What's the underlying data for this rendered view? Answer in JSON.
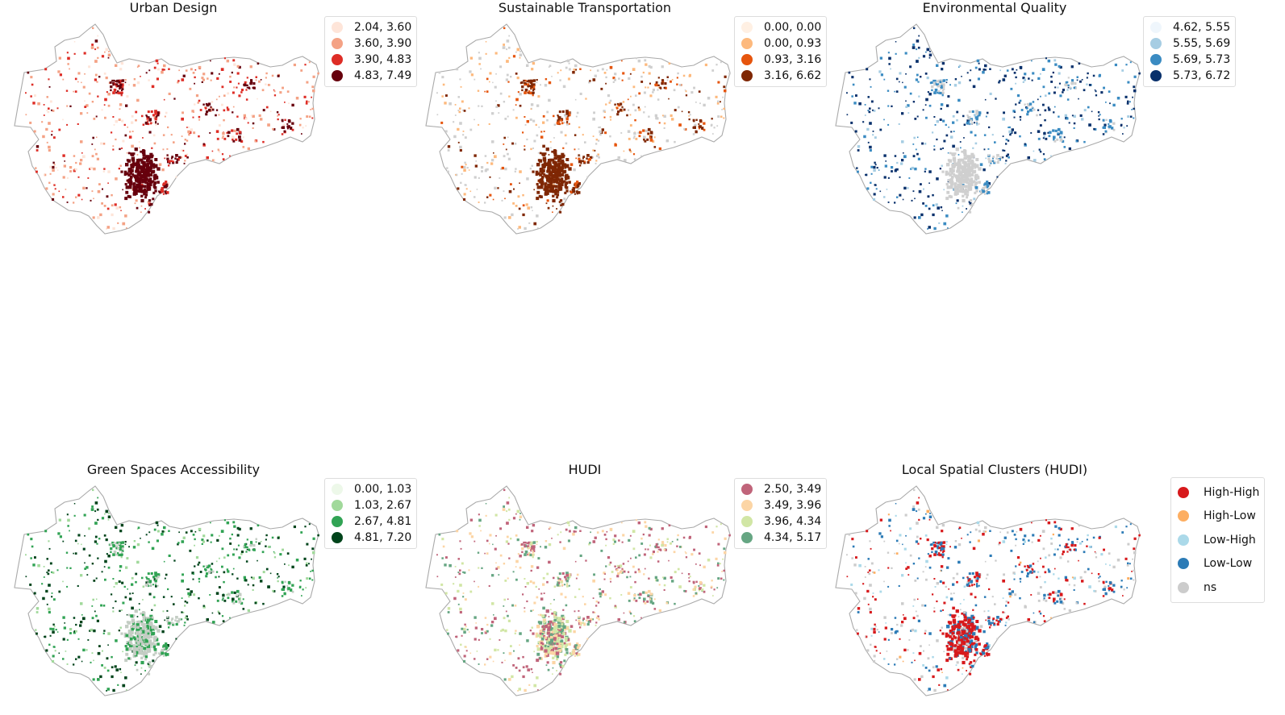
{
  "figure": {
    "panels": [
      {
        "id": "urban-design",
        "title": "Urban Design",
        "colors": {
          "boundary": "#aaaaaa",
          "nodata": "#cfcfcf"
        },
        "legend": [
          {
            "label": "2.04, 3.60",
            "color": "#fee5d9"
          },
          {
            "label": "3.60, 3.90",
            "color": "#f4a285"
          },
          {
            "label": "3.90, 4.83",
            "color": "#de2d26"
          },
          {
            "label": "4.83, 7.49",
            "color": "#67000d"
          }
        ]
      },
      {
        "id": "sustainable-transportation",
        "title": "Sustainable Transportation",
        "colors": {
          "boundary": "#aaaaaa",
          "nodata": "#cfcfcf"
        },
        "legend": [
          {
            "label": "0.00, 0.00",
            "color": "#fff0e3"
          },
          {
            "label": "0.00, 0.93",
            "color": "#fdb97d"
          },
          {
            "label": "0.93, 3.16",
            "color": "#e6550d"
          },
          {
            "label": "3.16, 6.62",
            "color": "#7f2704"
          }
        ]
      },
      {
        "id": "environmental-quality",
        "title": "Environmental Quality",
        "colors": {
          "boundary": "#aaaaaa",
          "nodata": "#cfcfcf"
        },
        "legend": [
          {
            "label": "4.62, 5.55",
            "color": "#eff6fc"
          },
          {
            "label": "5.55, 5.69",
            "color": "#a6cde3"
          },
          {
            "label": "5.69, 5.73",
            "color": "#3a8bc2"
          },
          {
            "label": "5.73, 6.72",
            "color": "#08306b"
          }
        ]
      },
      {
        "id": "green-spaces-accessibility",
        "title": "Green Spaces Accessibility",
        "colors": {
          "boundary": "#aaaaaa",
          "nodata": "#c4cdc4"
        },
        "legend": [
          {
            "label": "0.00, 1.03",
            "color": "#edf8e9"
          },
          {
            "label": "1.03, 2.67",
            "color": "#a1d99b"
          },
          {
            "label": "2.67, 4.81",
            "color": "#31a354"
          },
          {
            "label": "4.81, 7.20",
            "color": "#00441b"
          }
        ]
      },
      {
        "id": "hudi",
        "title": "HUDI",
        "colors": {
          "boundary": "#aaaaaa",
          "nodata": "#cfcfcf"
        },
        "legend": [
          {
            "label": "2.50, 3.49",
            "color": "#c0647a"
          },
          {
            "label": "3.49, 3.96",
            "color": "#fcd5a5"
          },
          {
            "label": "3.96, 4.34",
            "color": "#d1e6a5"
          },
          {
            "label": "4.34, 5.17",
            "color": "#66a683"
          }
        ]
      },
      {
        "id": "local-spatial-clusters",
        "title": "Local Spatial Clusters (HUDI)",
        "colors": {
          "boundary": "#aaaaaa",
          "nodata": "#dddddd"
        },
        "legend": [
          {
            "label": "High-High",
            "color": "#d7191c"
          },
          {
            "label": "High-Low",
            "color": "#fdae61"
          },
          {
            "label": "Low-High",
            "color": "#abd9e9"
          },
          {
            "label": "Low-Low",
            "color": "#2c7bb6"
          },
          {
            "label": "ns",
            "color": "#cccccc"
          }
        ]
      }
    ]
  }
}
